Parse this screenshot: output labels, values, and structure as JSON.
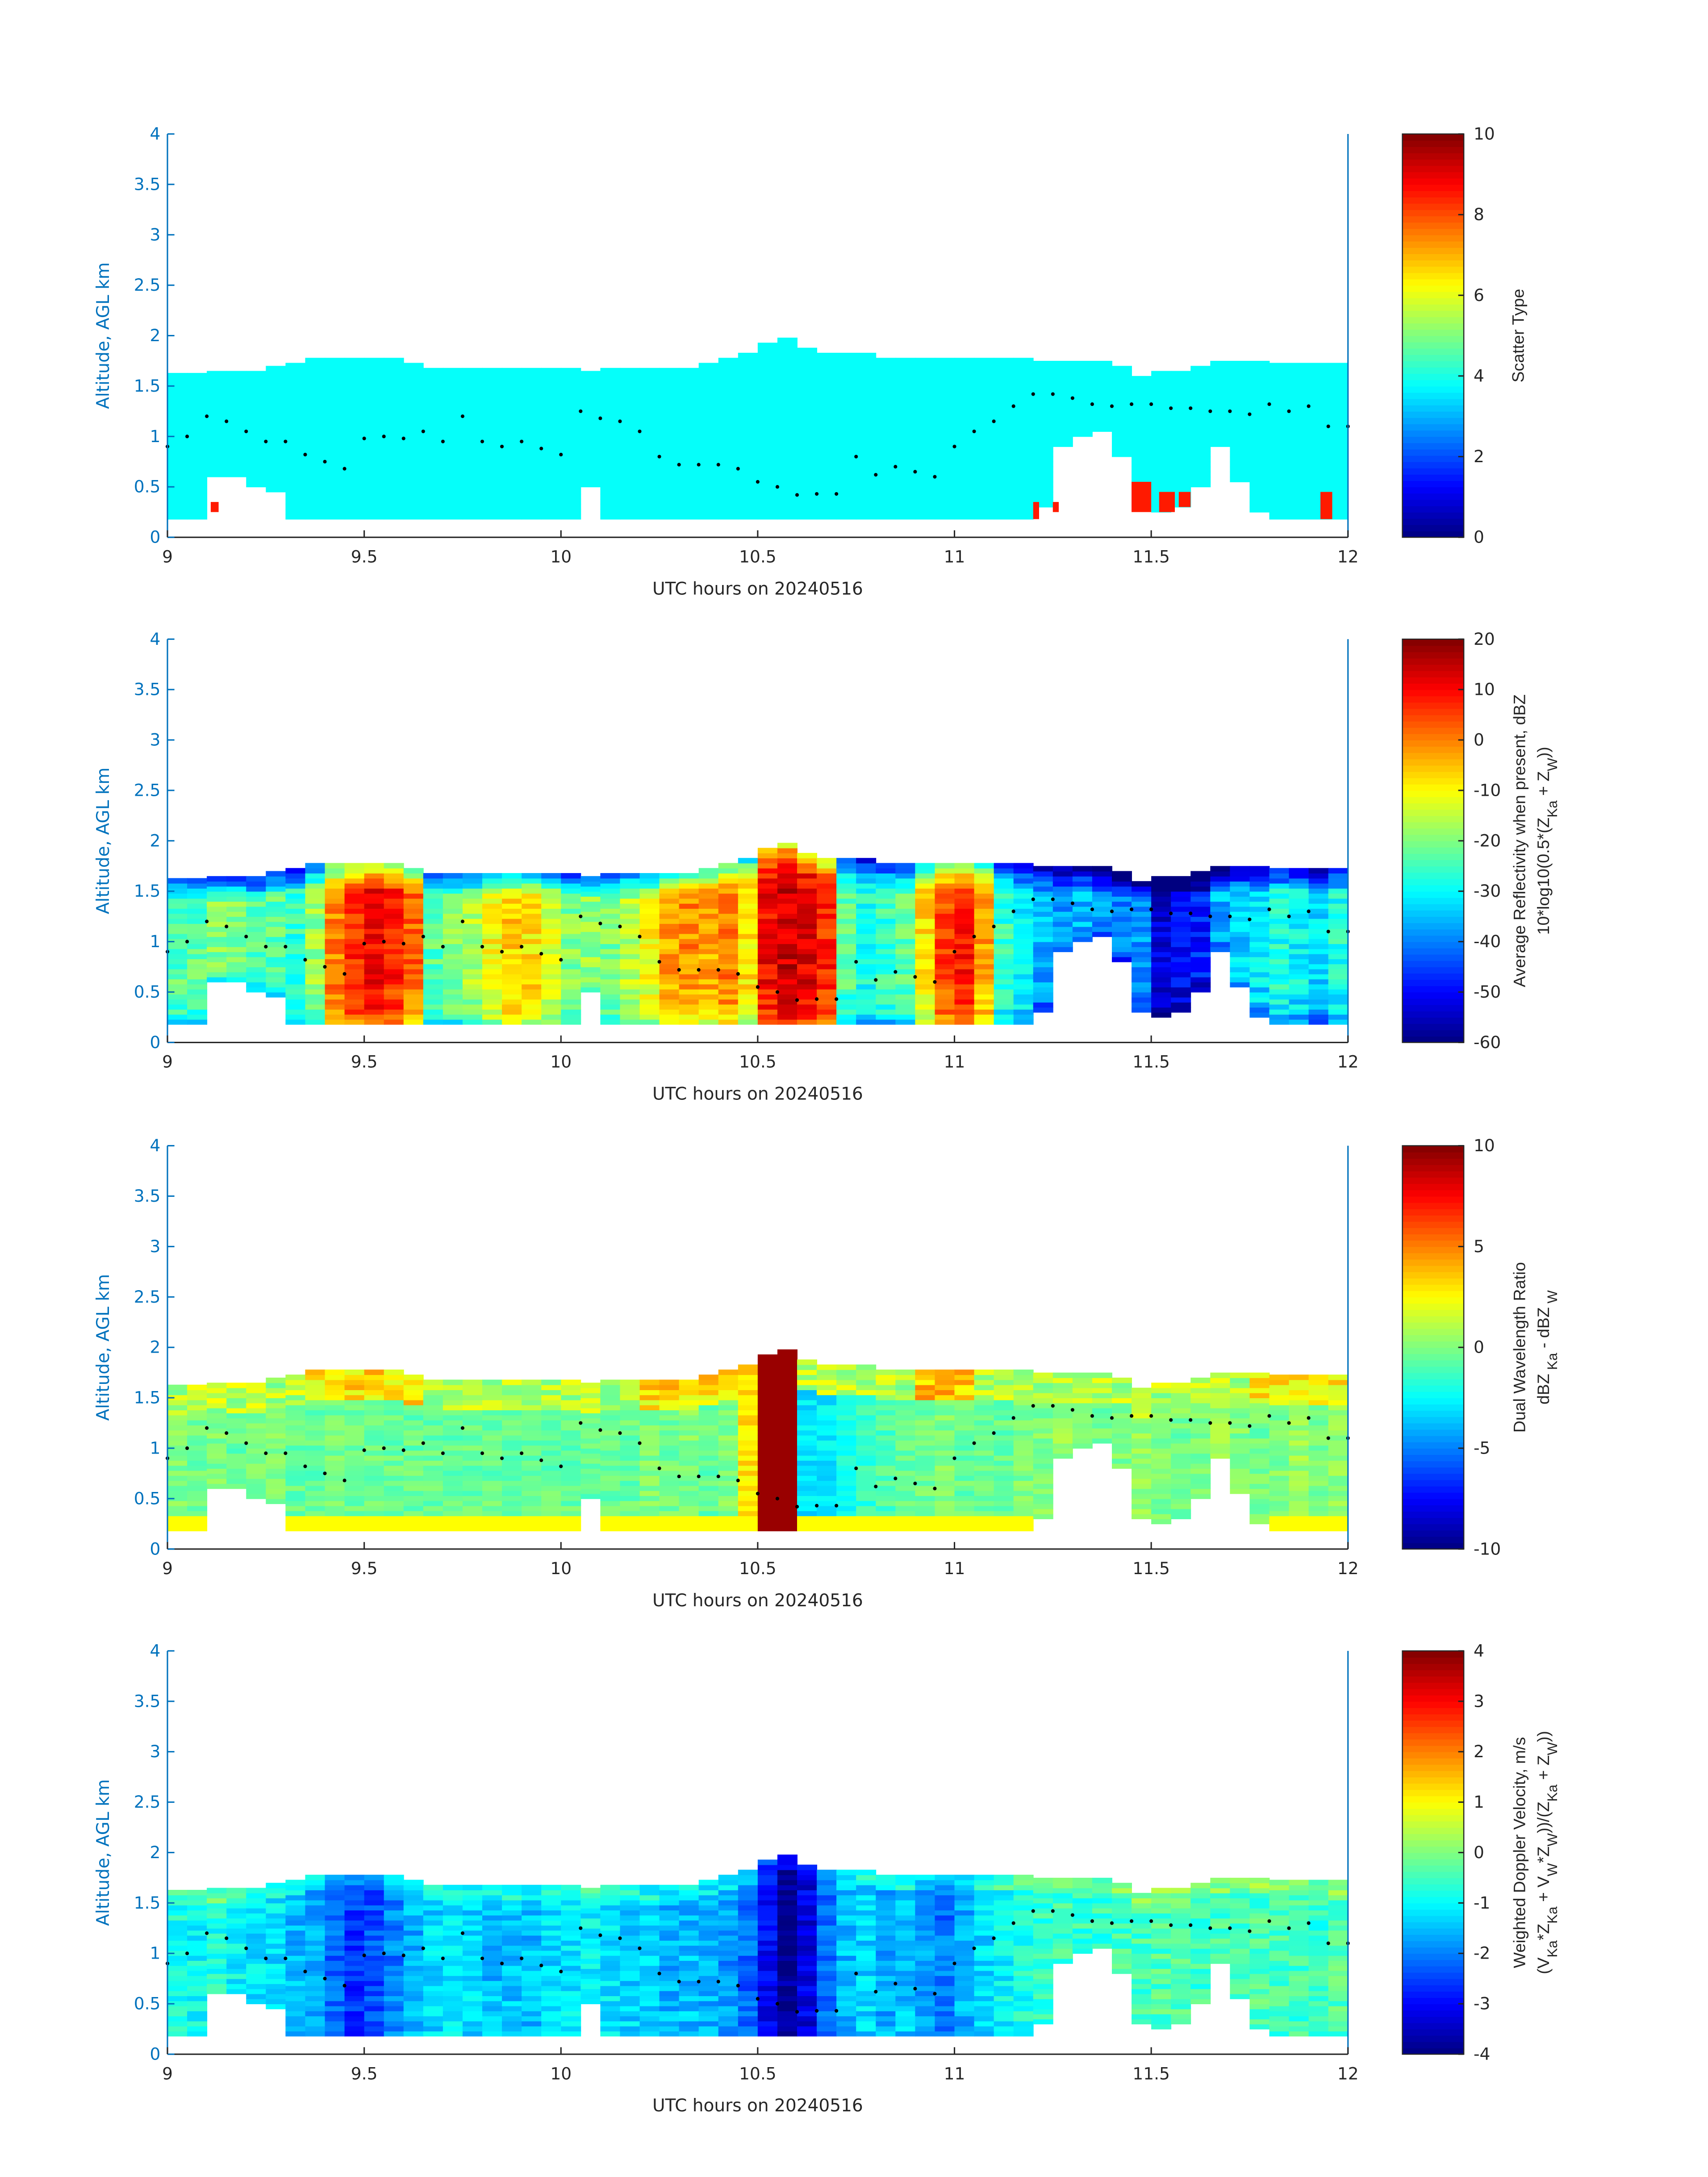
{
  "chart_data": {
    "type": "heatmap",
    "xlabel": "UTC hours on 20240516",
    "ylabel": "Altitude, AGL km",
    "xlim": [
      9,
      12
    ],
    "ylim": [
      0,
      4
    ],
    "xticks": [
      "9",
      "9.5",
      "10",
      "10.5",
      "11",
      "11.5",
      "12"
    ],
    "yticks": [
      "0",
      "0.5",
      "1",
      "1.5",
      "2",
      "2.5",
      "3",
      "3.5",
      "4"
    ],
    "colormap": "jet",
    "grid": false,
    "column_times_hours": [
      9.0,
      9.05,
      9.1,
      9.15,
      9.2,
      9.25,
      9.3,
      9.35,
      9.4,
      9.45,
      9.5,
      9.55,
      9.6,
      9.65,
      9.7,
      9.75,
      9.8,
      9.85,
      9.9,
      9.95,
      10.0,
      10.05,
      10.1,
      10.15,
      10.2,
      10.25,
      10.3,
      10.35,
      10.4,
      10.45,
      10.5,
      10.55,
      10.6,
      10.65,
      10.7,
      10.75,
      10.8,
      10.85,
      10.9,
      10.95,
      11.0,
      11.05,
      11.1,
      11.15,
      11.2,
      11.25,
      11.3,
      11.35,
      11.4,
      11.45,
      11.5,
      11.55,
      11.6,
      11.65,
      11.7,
      11.75,
      11.8,
      11.85,
      11.9,
      11.95
    ],
    "cloud_top_km": [
      1.62,
      1.62,
      1.62,
      1.62,
      1.62,
      1.68,
      1.72,
      1.75,
      1.75,
      1.75,
      1.75,
      1.75,
      1.72,
      1.68,
      1.65,
      1.65,
      1.65,
      1.65,
      1.65,
      1.65,
      1.65,
      1.65,
      1.65,
      1.65,
      1.65,
      1.65,
      1.68,
      1.72,
      1.75,
      1.82,
      1.92,
      1.95,
      1.88,
      1.82,
      1.8,
      1.8,
      1.78,
      1.78,
      1.75,
      1.75,
      1.75,
      1.75,
      1.75,
      1.75,
      1.75,
      1.75,
      1.75,
      1.72,
      1.68,
      1.6,
      1.62,
      1.65,
      1.68,
      1.72,
      1.72,
      1.72,
      1.72,
      1.72,
      1.72,
      1.72
    ],
    "cloud_base_km": [
      0.18,
      0.18,
      0.6,
      0.6,
      0.5,
      0.45,
      0.18,
      0.18,
      0.18,
      0.18,
      0.18,
      0.18,
      0.18,
      0.18,
      0.18,
      0.18,
      0.18,
      0.18,
      0.18,
      0.18,
      0.18,
      0.5,
      0.18,
      0.18,
      0.18,
      0.18,
      0.18,
      0.18,
      0.18,
      0.18,
      0.18,
      0.18,
      0.18,
      0.18,
      0.18,
      0.18,
      0.18,
      0.18,
      0.18,
      0.18,
      0.18,
      0.18,
      0.18,
      0.18,
      0.3,
      0.9,
      1.0,
      1.05,
      0.8,
      0.3,
      0.25,
      0.3,
      0.5,
      0.9,
      0.55,
      0.25,
      0.18,
      0.18,
      0.18,
      0.18
    ],
    "markers": {
      "x": [
        9.0,
        9.05,
        9.1,
        9.15,
        9.2,
        9.25,
        9.3,
        9.35,
        9.4,
        9.45,
        9.5,
        9.55,
        9.6,
        9.65,
        9.7,
        9.75,
        9.8,
        9.85,
        9.9,
        9.95,
        10.0,
        10.05,
        10.1,
        10.15,
        10.2,
        10.25,
        10.3,
        10.35,
        10.4,
        10.45,
        10.5,
        10.55,
        10.6,
        10.65,
        10.7,
        10.75,
        10.8,
        10.85,
        10.9,
        10.95,
        11.0,
        11.05,
        11.1,
        11.15,
        11.2,
        11.25,
        11.3,
        11.35,
        11.4,
        11.45,
        11.5,
        11.55,
        11.6,
        11.65,
        11.7,
        11.75,
        11.8,
        11.85,
        11.9,
        11.95,
        12.0
      ],
      "y": [
        0.9,
        1.0,
        1.2,
        1.15,
        1.05,
        0.95,
        0.95,
        0.82,
        0.75,
        0.68,
        0.98,
        1.0,
        0.98,
        1.05,
        0.95,
        1.2,
        0.95,
        0.9,
        0.95,
        0.88,
        0.82,
        1.25,
        1.18,
        1.15,
        1.05,
        0.8,
        0.72,
        0.72,
        0.72,
        0.68,
        0.55,
        0.5,
        0.42,
        0.43,
        0.43,
        0.8,
        0.62,
        0.7,
        0.65,
        0.6,
        0.9,
        1.05,
        1.15,
        1.3,
        1.42,
        1.42,
        1.38,
        1.32,
        1.3,
        1.32,
        1.32,
        1.28,
        1.28,
        1.25,
        1.25,
        1.22,
        1.32,
        1.25,
        1.3,
        1.1,
        1.1
      ]
    },
    "panels": [
      {
        "name": "scatter-type",
        "clim": [
          0,
          10
        ],
        "cticks": [
          "0",
          "2",
          "4",
          "6",
          "8",
          "10"
        ],
        "colorbar_label": [
          "Scatter Type"
        ],
        "colorbar_label_line2": [],
        "default_value": 3.8,
        "patches": [
          {
            "t0": 9.11,
            "t1": 9.13,
            "z0": 0.25,
            "z1": 0.35,
            "value": 8.5
          },
          {
            "t0": 11.2,
            "t1": 11.215,
            "z0": 0.18,
            "z1": 0.35,
            "value": 8.5
          },
          {
            "t0": 11.25,
            "t1": 11.265,
            "z0": 0.25,
            "z1": 0.35,
            "value": 8.5
          },
          {
            "t0": 11.45,
            "t1": 11.5,
            "z0": 0.25,
            "z1": 0.55,
            "value": 8.5
          },
          {
            "t0": 11.52,
            "t1": 11.56,
            "z0": 0.25,
            "z1": 0.45,
            "value": 8.5
          },
          {
            "t0": 11.57,
            "t1": 11.6,
            "z0": 0.3,
            "z1": 0.45,
            "value": 8.5
          },
          {
            "t0": 11.93,
            "t1": 11.96,
            "z0": 0.18,
            "z1": 0.45,
            "value": 8.5
          }
        ]
      },
      {
        "name": "reflectivity",
        "clim": [
          -60,
          20
        ],
        "cticks": [
          "-60",
          "-50",
          "-40",
          "-30",
          "-20",
          "-10",
          "0",
          "10",
          "20"
        ],
        "colorbar_label": [
          "Average Reflectivity when present, dBZ"
        ],
        "colorbar_label_line2": [
          {
            "t": "10*log10(0.5*(Z"
          },
          {
            "t": "Ka",
            "sub": true
          },
          {
            "t": " + Z"
          },
          {
            "t": "W",
            "sub": true
          },
          {
            "t": "))"
          }
        ],
        "column_values": [
          -25,
          -25,
          -22,
          -22,
          -25,
          -25,
          -28,
          -20,
          -2,
          5,
          8,
          6,
          0,
          -25,
          -22,
          -18,
          -12,
          -8,
          -10,
          -15,
          -22,
          -20,
          -22,
          -18,
          -12,
          -5,
          -3,
          -5,
          -2,
          -10,
          8,
          12,
          10,
          5,
          -25,
          -30,
          -28,
          -25,
          -10,
          3,
          6,
          -5,
          -28,
          -32,
          -38,
          -40,
          -38,
          -40,
          -42,
          -40,
          -55,
          -52,
          -50,
          -38,
          -35,
          -33,
          -30,
          -32,
          -35,
          -30
        ]
      },
      {
        "name": "dual-wavelength-ratio",
        "clim": [
          -10,
          10
        ],
        "cticks": [
          "-10",
          "-5",
          "0",
          "5",
          "10"
        ],
        "colorbar_label": [
          "Dual Wavelength Ratio"
        ],
        "colorbar_label_line2": [
          {
            "t": "dBZ"
          },
          {
            "t": " Ka",
            "sub": true
          },
          {
            "t": " - dBZ"
          },
          {
            "t": " W",
            "sub": true
          }
        ],
        "column_values": [
          0,
          -0.3,
          0,
          -0.5,
          -0.3,
          0,
          -0.5,
          -0.5,
          -0.3,
          -0.5,
          -0.3,
          -0.5,
          -0.5,
          -0.5,
          -0.5,
          -0.5,
          -0.5,
          -0.5,
          -0.5,
          -0.5,
          -0.5,
          -0.5,
          -0.5,
          -0.5,
          0,
          -0.3,
          0,
          -0.5,
          0,
          3,
          9.5,
          9.5,
          -3,
          -2.8,
          -2.2,
          -1.5,
          -1,
          -0.5,
          -0.3,
          0,
          -0.5,
          -0.3,
          -0.5,
          0,
          0,
          0.5,
          0,
          -0.3,
          0,
          0.3,
          0,
          -0.3,
          0,
          0.5,
          0,
          -0.3,
          0,
          0.5,
          0,
          0.3
        ],
        "upper_layer_values": [
          1,
          1,
          1,
          1,
          1,
          1,
          1,
          3,
          3,
          3,
          3,
          3,
          3,
          1,
          1,
          1,
          1,
          1,
          1,
          1,
          1,
          1,
          1,
          1,
          3,
          3,
          3,
          3,
          3,
          3,
          1,
          1,
          1,
          1,
          1,
          1,
          1,
          1,
          3.5,
          3.5,
          3.5,
          1,
          1,
          1,
          1,
          1,
          1,
          1,
          1,
          1,
          1,
          1,
          1,
          1,
          1,
          2.5,
          2.5,
          2.5,
          2.5,
          2.5
        ],
        "lowest_gate_value": 2.5
      },
      {
        "name": "doppler-velocity",
        "clim": [
          -4,
          4
        ],
        "cticks": [
          "-4",
          "-3",
          "-2",
          "-1",
          "0",
          "1",
          "2",
          "3",
          "4"
        ],
        "colorbar_label": [
          "Weighted Doppler Velocity, m/s"
        ],
        "colorbar_label_line2": [
          {
            "t": "(V"
          },
          {
            "t": "Ka",
            "sub": true
          },
          {
            "t": "*Z"
          },
          {
            "t": "Ka",
            "sub": true
          },
          {
            "t": " + V"
          },
          {
            "t": "W",
            "sub": true
          },
          {
            "t": "*Z"
          },
          {
            "t": "W",
            "sub": true
          },
          {
            "t": "))/(Z"
          },
          {
            "t": "Ka",
            "sub": true
          },
          {
            "t": " + Z"
          },
          {
            "t": "W",
            "sub": true
          },
          {
            "t": "))"
          }
        ],
        "column_values": [
          -0.8,
          -1,
          -0.8,
          -1,
          -1.2,
          -1.2,
          -1.5,
          -1.6,
          -2.2,
          -2.6,
          -2.4,
          -2,
          -1.6,
          -1.3,
          -1.2,
          -1.3,
          -1.5,
          -1.4,
          -1.5,
          -1.3,
          -1.2,
          -1,
          -1.2,
          -1.3,
          -1.4,
          -1.6,
          -1.5,
          -1.6,
          -1.8,
          -2.2,
          -3,
          -3.8,
          -3.2,
          -2.2,
          -1.5,
          -1.3,
          -1.6,
          -1.4,
          -1.8,
          -2.1,
          -1.6,
          -1.3,
          -1,
          -0.8,
          -0.6,
          -0.5,
          -0.6,
          -0.6,
          -0.5,
          -0.5,
          -0.4,
          -0.4,
          -0.5,
          -0.5,
          -0.5,
          -0.4,
          -0.5,
          -0.5,
          -0.6,
          -0.4
        ]
      }
    ]
  },
  "colors": {
    "axis_blue": "#0072BD",
    "scatter_cloud": "#1affd9"
  }
}
